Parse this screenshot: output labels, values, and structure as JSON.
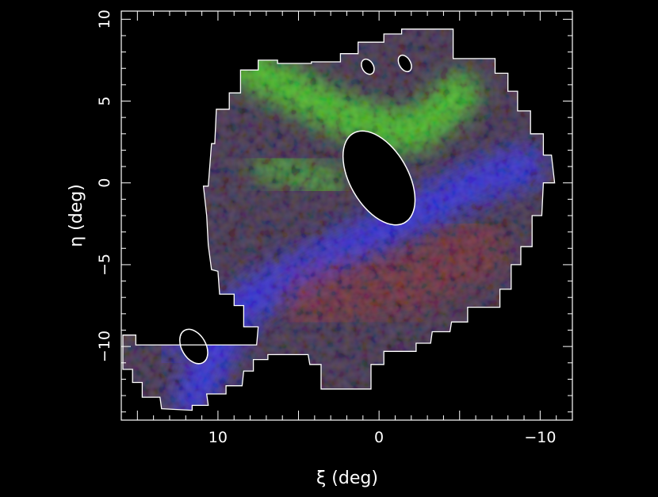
{
  "chart_data": {
    "type": "heatmap",
    "title": "",
    "xlabel": "ξ (deg)",
    "ylabel": "η (deg)",
    "xlim": [
      16,
      -12
    ],
    "ylim": [
      -14.5,
      10.5
    ],
    "x_axis_reversed": true,
    "x_ticks": [
      10,
      0,
      -10
    ],
    "x_tick_labels": [
      "10",
      "0",
      "−10"
    ],
    "y_ticks": [
      10,
      5,
      0,
      -5,
      -10
    ],
    "y_tick_labels": [
      "10",
      "5",
      "0",
      "−5",
      "−10"
    ],
    "grid": false,
    "legend": "none",
    "background_color": "#000000",
    "axis_color": "#ffffff",
    "coverage_outline_color": "#ffffff",
    "channel_colors": {
      "red": "#8a3a3a",
      "green": "#4fd02a",
      "blue": "#3a3ae6"
    },
    "masked_regions": [
      {
        "shape": "ellipse",
        "cx": 0.0,
        "cy": 0.3,
        "rx": 1.8,
        "ry": 3.2,
        "rotation_deg": -30
      },
      {
        "shape": "ellipse",
        "cx": 0.7,
        "cy": 7.1,
        "rx": 0.35,
        "ry": 0.5,
        "rotation_deg": -30
      },
      {
        "shape": "ellipse",
        "cx": -1.6,
        "cy": 7.3,
        "rx": 0.35,
        "ry": 0.55,
        "rotation_deg": -30
      },
      {
        "shape": "ellipse",
        "cx": 11.5,
        "cy": -10.0,
        "rx": 0.75,
        "ry": 1.15,
        "rotation_deg": -30
      }
    ],
    "coverage_outline": [
      [
        15.9,
        -11.4
      ],
      [
        15.3,
        -11.4
      ],
      [
        15.3,
        -12.2
      ],
      [
        14.7,
        -12.2
      ],
      [
        14.7,
        -13.1
      ],
      [
        13.6,
        -13.1
      ],
      [
        13.5,
        -13.8
      ],
      [
        11.6,
        -13.9
      ],
      [
        11.6,
        -13.6
      ],
      [
        10.6,
        -13.6
      ],
      [
        10.7,
        -12.9
      ],
      [
        9.5,
        -12.9
      ],
      [
        9.5,
        -12.4
      ],
      [
        8.5,
        -12.4
      ],
      [
        8.4,
        -11.5
      ],
      [
        7.8,
        -11.5
      ],
      [
        7.8,
        -10.8
      ],
      [
        6.9,
        -10.8
      ],
      [
        6.9,
        -10.5
      ],
      [
        4.4,
        -10.5
      ],
      [
        4.3,
        -11.1
      ],
      [
        3.6,
        -11.1
      ],
      [
        3.6,
        -12.6
      ],
      [
        0.5,
        -12.6
      ],
      [
        0.5,
        -11.1
      ],
      [
        -0.3,
        -11.1
      ],
      [
        -0.3,
        -10.3
      ],
      [
        -2.3,
        -10.3
      ],
      [
        -2.3,
        -9.8
      ],
      [
        -3.2,
        -9.8
      ],
      [
        -3.3,
        -9.1
      ],
      [
        -4.4,
        -9.1
      ],
      [
        -4.5,
        -8.5
      ],
      [
        -5.5,
        -8.5
      ],
      [
        -5.5,
        -7.6
      ],
      [
        -7.5,
        -7.6
      ],
      [
        -7.5,
        -6.5
      ],
      [
        -8.2,
        -6.5
      ],
      [
        -8.2,
        -5.0
      ],
      [
        -8.8,
        -5.0
      ],
      [
        -8.8,
        -3.9
      ],
      [
        -9.5,
        -3.9
      ],
      [
        -9.5,
        -2.0
      ],
      [
        -10.1,
        -2.0
      ],
      [
        -10.2,
        0.0
      ],
      [
        -10.9,
        0.0
      ],
      [
        -10.7,
        1.7
      ],
      [
        -10.2,
        1.7
      ],
      [
        -10.2,
        3.0
      ],
      [
        -9.4,
        3.0
      ],
      [
        -9.4,
        4.4
      ],
      [
        -8.6,
        4.4
      ],
      [
        -8.6,
        5.6
      ],
      [
        -8.0,
        5.6
      ],
      [
        -8.0,
        6.7
      ],
      [
        -7.2,
        6.7
      ],
      [
        -7.2,
        7.6
      ],
      [
        -6.2,
        7.6
      ],
      [
        -6.2,
        7.6
      ],
      [
        -4.6,
        7.6
      ],
      [
        -4.6,
        9.4
      ],
      [
        -1.4,
        9.4
      ],
      [
        -1.4,
        9.1
      ],
      [
        -0.3,
        9.1
      ],
      [
        -0.3,
        8.6
      ],
      [
        1.3,
        8.6
      ],
      [
        1.3,
        7.9
      ],
      [
        2.4,
        7.9
      ],
      [
        2.4,
        7.4
      ],
      [
        4.2,
        7.4
      ],
      [
        4.2,
        7.3
      ],
      [
        6.3,
        7.3
      ],
      [
        6.3,
        7.5
      ],
      [
        7.5,
        7.5
      ],
      [
        7.5,
        6.9
      ],
      [
        8.6,
        6.9
      ],
      [
        8.6,
        5.5
      ],
      [
        9.3,
        5.5
      ],
      [
        9.3,
        4.5
      ],
      [
        10.1,
        4.5
      ],
      [
        10.2,
        2.4
      ],
      [
        10.4,
        2.4
      ],
      [
        10.6,
        -0.2
      ],
      [
        10.9,
        -0.2
      ],
      [
        10.7,
        -2.0
      ],
      [
        10.6,
        -3.8
      ],
      [
        10.4,
        -5.3
      ],
      [
        10.0,
        -5.4
      ],
      [
        9.9,
        -6.8
      ],
      [
        9.0,
        -6.8
      ],
      [
        9.0,
        -7.5
      ],
      [
        8.4,
        -7.5
      ],
      [
        8.4,
        -8.8
      ],
      [
        7.5,
        -8.8
      ],
      [
        7.6,
        -9.9
      ],
      [
        15.1,
        -9.9
      ],
      [
        15.1,
        -9.3
      ],
      [
        15.9,
        -9.3
      ],
      [
        15.9,
        -11.4
      ]
    ],
    "diffuse_features": [
      {
        "channel": "green",
        "description_kind": "stream",
        "path": [
          [
            8,
            7
          ],
          [
            6,
            6
          ],
          [
            4,
            5
          ],
          [
            2,
            4
          ],
          [
            0,
            3.5
          ],
          [
            -2,
            3
          ],
          [
            -4,
            4.5
          ],
          [
            -5,
            5.5
          ]
        ],
        "width_deg": 2.5,
        "intensity": 0.8
      },
      {
        "channel": "green",
        "description_kind": "stream",
        "path": [
          [
            7,
            1
          ],
          [
            5,
            0.5
          ],
          [
            3,
            0
          ]
        ],
        "width_deg": 2.0,
        "intensity": 0.5
      },
      {
        "channel": "blue",
        "description_kind": "stream",
        "path": [
          [
            11.5,
            -13
          ],
          [
            10.5,
            -11
          ],
          [
            9,
            -8
          ],
          [
            7,
            -6.5
          ],
          [
            5,
            -5.5
          ],
          [
            2,
            -4
          ],
          [
            0,
            -3
          ],
          [
            -3,
            -1.5
          ],
          [
            -6,
            0
          ],
          [
            -9,
            1
          ]
        ],
        "width_deg": 2.5,
        "intensity": 0.8
      },
      {
        "channel": "blue",
        "description_kind": "patch",
        "path": [
          [
            13,
            -10
          ],
          [
            12,
            -8
          ]
        ],
        "width_deg": 2.0,
        "intensity": 0.5
      },
      {
        "channel": "red",
        "description_kind": "patch",
        "path": [
          [
            4,
            -7
          ],
          [
            -2,
            -6
          ],
          [
            -6,
            -4
          ]
        ],
        "width_deg": 4.0,
        "intensity": 0.5
      }
    ]
  }
}
